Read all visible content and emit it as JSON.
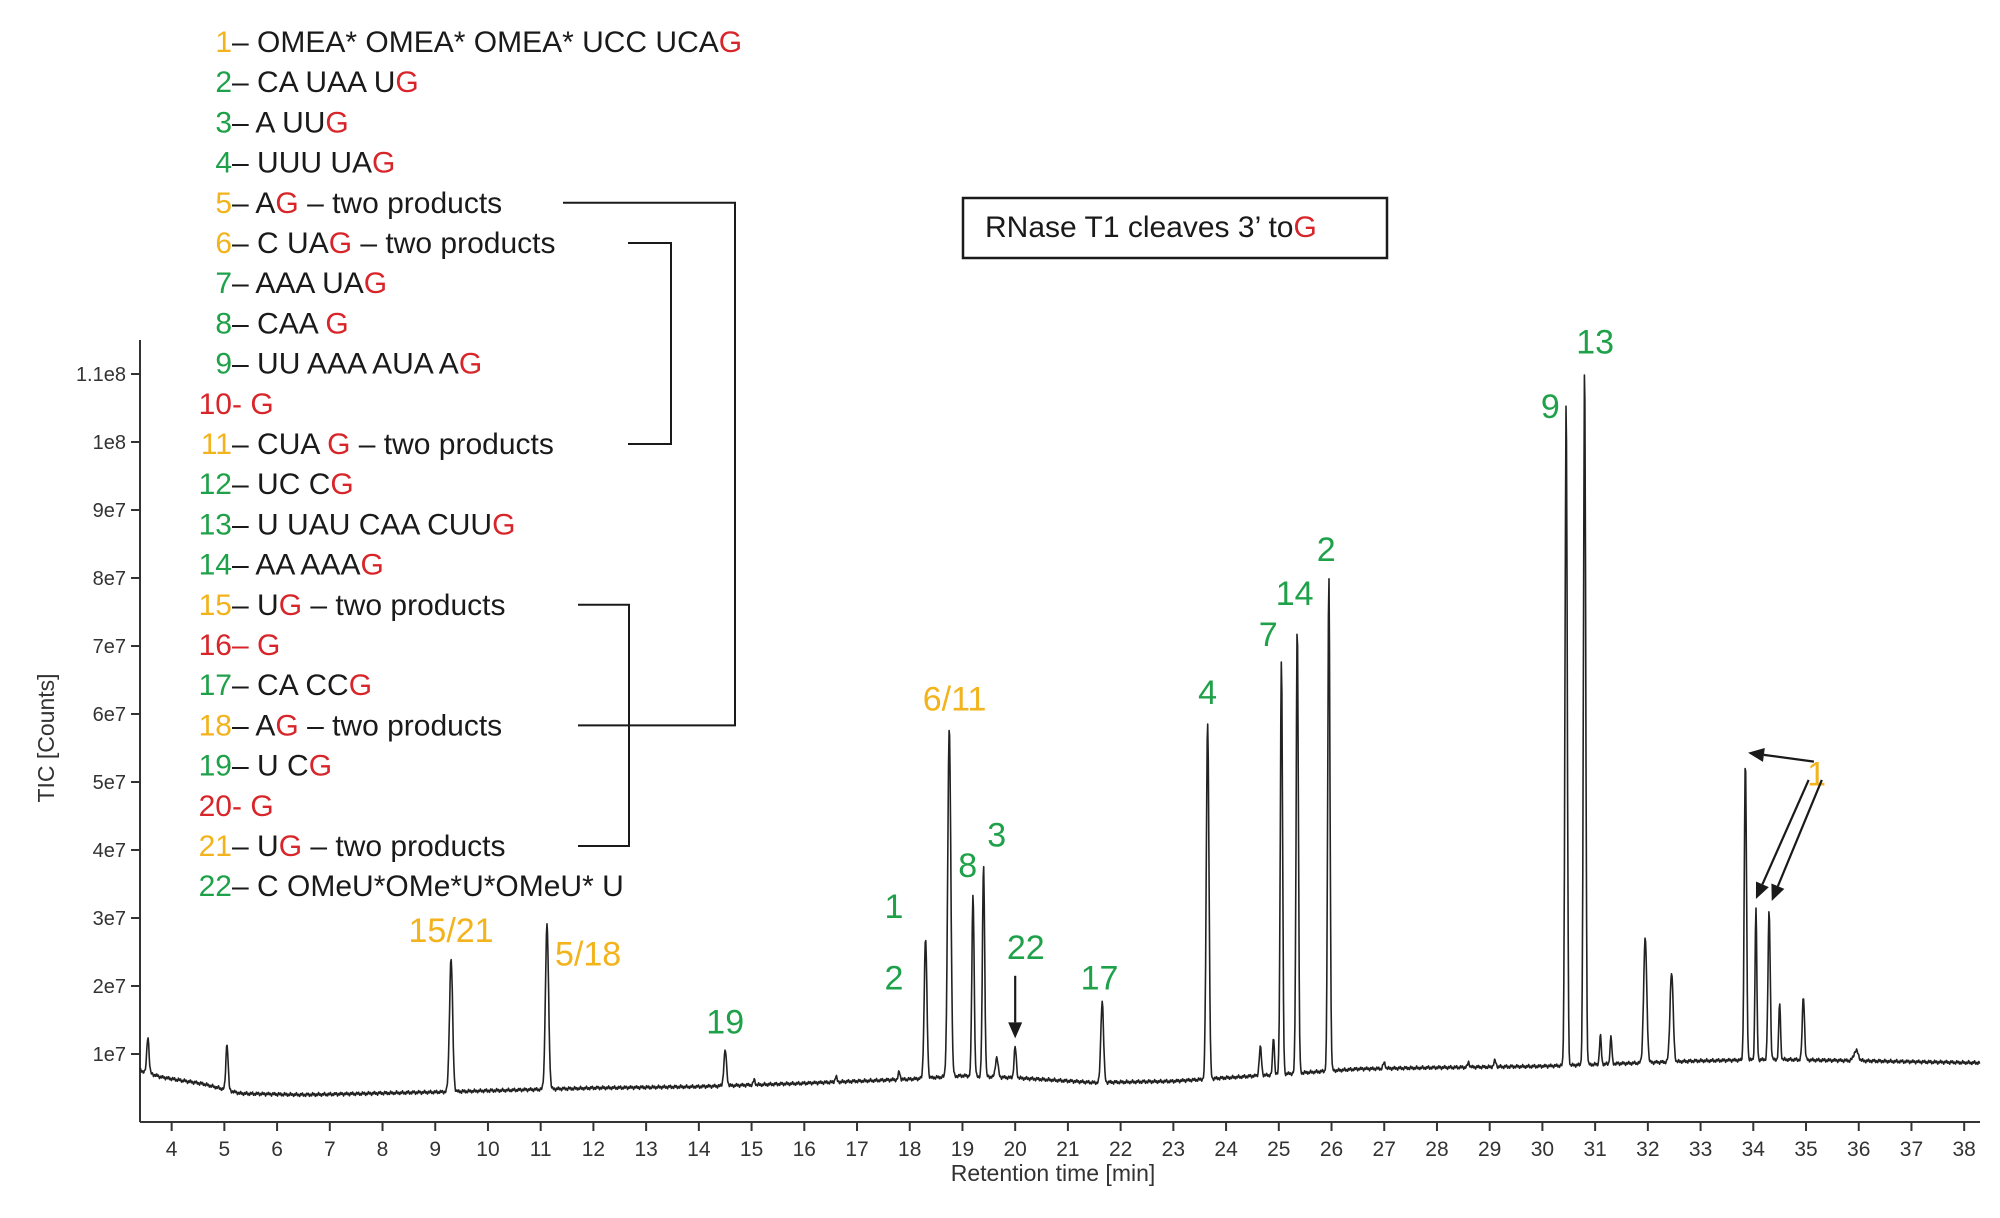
{
  "colors": {
    "orange": "#F2B31D",
    "green": "#1FA14A",
    "red": "#D8252A",
    "black": "#1a1a1a",
    "axis": "#333333"
  },
  "legend": [
    {
      "num": "1",
      "numColor": "orange",
      "sep": " – ",
      "parts": [
        [
          "OMEA* OMEA* OMEA* UCC UCA",
          "black"
        ],
        [
          "G",
          "red"
        ]
      ]
    },
    {
      "num": "2",
      "numColor": "green",
      "sep": " – ",
      "parts": [
        [
          "CA UAA U",
          "black"
        ],
        [
          "G",
          "red"
        ]
      ]
    },
    {
      "num": "3",
      "numColor": "green",
      "sep": " – ",
      "parts": [
        [
          "A UU",
          "black"
        ],
        [
          "G",
          "red"
        ]
      ]
    },
    {
      "num": "4",
      "numColor": "green",
      "sep": " – ",
      "parts": [
        [
          "UUU UA",
          "black"
        ],
        [
          "G",
          "red"
        ]
      ]
    },
    {
      "num": "5",
      "numColor": "orange",
      "sep": " – ",
      "parts": [
        [
          "A",
          "black"
        ],
        [
          "G",
          "red"
        ],
        [
          " – two products",
          "black"
        ]
      ]
    },
    {
      "num": "6",
      "numColor": "orange",
      "sep": " – ",
      "parts": [
        [
          "C UA",
          "black"
        ],
        [
          "G",
          "red"
        ],
        [
          " – two products",
          "black"
        ]
      ]
    },
    {
      "num": "7",
      "numColor": "green",
      "sep": " – ",
      "parts": [
        [
          "AAA UA",
          "black"
        ],
        [
          "G",
          "red"
        ]
      ]
    },
    {
      "num": "8",
      "numColor": "green",
      "sep": " – ",
      "parts": [
        [
          "CAA ",
          "black"
        ],
        [
          "G",
          "red"
        ]
      ]
    },
    {
      "num": "9",
      "numColor": "green",
      "sep": " – ",
      "parts": [
        [
          "UU AAA AUA A",
          "black"
        ],
        [
          "G",
          "red"
        ]
      ]
    },
    {
      "num": "10",
      "numColor": "red",
      "sep": " - ",
      "sepColor": "red",
      "parts": [
        [
          "G",
          "red"
        ]
      ]
    },
    {
      "num": "11",
      "numColor": "orange",
      "sep": " – ",
      "parts": [
        [
          "CUA ",
          "black"
        ],
        [
          "G",
          "red"
        ],
        [
          " – two products",
          "black"
        ]
      ]
    },
    {
      "num": "12",
      "numColor": "green",
      "sep": " – ",
      "parts": [
        [
          "UC C",
          "black"
        ],
        [
          "G",
          "red"
        ]
      ]
    },
    {
      "num": "13",
      "numColor": "green",
      "sep": " – ",
      "parts": [
        [
          "U UAU CAA CUU",
          "black"
        ],
        [
          "G",
          "red"
        ]
      ]
    },
    {
      "num": "14",
      "numColor": "green",
      "sep": " – ",
      "parts": [
        [
          "AA AAA",
          "black"
        ],
        [
          "G",
          "red"
        ]
      ]
    },
    {
      "num": "15",
      "numColor": "orange",
      "sep": " – ",
      "parts": [
        [
          "U",
          "black"
        ],
        [
          "G",
          "red"
        ],
        [
          " – two products",
          "black"
        ]
      ]
    },
    {
      "num": "16",
      "numColor": "red",
      "sep": " – ",
      "sepColor": "red",
      "parts": [
        [
          "G",
          "red"
        ]
      ]
    },
    {
      "num": "17",
      "numColor": "green",
      "sep": " – ",
      "parts": [
        [
          "CA CC",
          "black"
        ],
        [
          "G",
          "red"
        ]
      ]
    },
    {
      "num": "18",
      "numColor": "orange",
      "sep": " – ",
      "parts": [
        [
          "A",
          "black"
        ],
        [
          "G",
          "red"
        ],
        [
          " – two products",
          "black"
        ]
      ]
    },
    {
      "num": "19",
      "numColor": "green",
      "sep": " – ",
      "parts": [
        [
          "U C",
          "black"
        ],
        [
          "G",
          "red"
        ]
      ]
    },
    {
      "num": "20",
      "numColor": "red",
      "sep": " - ",
      "sepColor": "red",
      "parts": [
        [
          "G",
          "red"
        ]
      ]
    },
    {
      "num": "21",
      "numColor": "orange",
      "sep": " – ",
      "parts": [
        [
          "U",
          "black"
        ],
        [
          "G",
          "red"
        ],
        [
          " – two products",
          "black"
        ]
      ]
    },
    {
      "num": "22",
      "numColor": "green",
      "sep": " – ",
      "parts": [
        [
          "C OMeU*OMe*U*OMeU* U",
          "black"
        ]
      ]
    }
  ],
  "box_label": {
    "text": "RNase T1 cleaves 3’ to",
    "highlight": "G"
  },
  "chart_data": {
    "type": "line",
    "title": "",
    "xlabel": "Retention time [min]",
    "ylabel": "TIC [Counts]",
    "xlim": [
      3.4,
      38.3
    ],
    "ylim": [
      0,
      115000000
    ],
    "xticks": [
      4,
      5,
      6,
      7,
      8,
      9,
      10,
      11,
      12,
      13,
      14,
      15,
      16,
      17,
      18,
      19,
      20,
      21,
      22,
      23,
      24,
      25,
      26,
      27,
      28,
      29,
      30,
      31,
      32,
      33,
      34,
      35,
      36,
      37,
      38
    ],
    "yticks": [
      {
        "value": 10000000,
        "label": "1e7"
      },
      {
        "value": 20000000,
        "label": "2e7"
      },
      {
        "value": 30000000,
        "label": "3e7"
      },
      {
        "value": 40000000,
        "label": "4e7"
      },
      {
        "value": 50000000,
        "label": "5e7"
      },
      {
        "value": 60000000,
        "label": "6e7"
      },
      {
        "value": 70000000,
        "label": "7e7"
      },
      {
        "value": 80000000,
        "label": "8e7"
      },
      {
        "value": 90000000,
        "label": "9e7"
      },
      {
        "value": 100000000,
        "label": "1e8"
      },
      {
        "value": 110000000,
        "label": "1.1e8"
      }
    ],
    "baseline": [
      [
        3.4,
        7600000
      ],
      [
        3.8,
        6600000
      ],
      [
        4.6,
        5600000
      ],
      [
        5.3,
        4200000
      ],
      [
        6.5,
        4000000
      ],
      [
        9.0,
        4400000
      ],
      [
        11.0,
        4800000
      ],
      [
        12.0,
        5000000
      ],
      [
        14.0,
        5200000
      ],
      [
        16.0,
        5700000
      ],
      [
        18.0,
        6300000
      ],
      [
        19.0,
        6800000
      ],
      [
        20.0,
        6500000
      ],
      [
        21.5,
        5800000
      ],
      [
        23.0,
        6000000
      ],
      [
        25.0,
        7000000
      ],
      [
        26.5,
        7800000
      ],
      [
        28.0,
        8000000
      ],
      [
        30.0,
        8200000
      ],
      [
        31.5,
        8600000
      ],
      [
        33.0,
        9000000
      ],
      [
        34.5,
        9200000
      ],
      [
        36.0,
        9000000
      ],
      [
        38.3,
        8700000
      ]
    ],
    "peaks": [
      {
        "x": 3.55,
        "y": 12500000,
        "w": 0.05
      },
      {
        "x": 5.05,
        "y": 11500000,
        "w": 0.05
      },
      {
        "x": 9.3,
        "y": 24000000,
        "w": 0.07
      },
      {
        "x": 11.12,
        "y": 29000000,
        "w": 0.07
      },
      {
        "x": 14.5,
        "y": 10500000,
        "w": 0.06
      },
      {
        "x": 15.05,
        "y": 6200000,
        "w": 0.04
      },
      {
        "x": 16.6,
        "y": 6700000,
        "w": 0.04
      },
      {
        "x": 17.8,
        "y": 7400000,
        "w": 0.04
      },
      {
        "x": 18.3,
        "y": 27000000,
        "w": 0.06
      },
      {
        "x": 18.75,
        "y": 58000000,
        "w": 0.07
      },
      {
        "x": 19.2,
        "y": 33500000,
        "w": 0.05
      },
      {
        "x": 19.4,
        "y": 38000000,
        "w": 0.05
      },
      {
        "x": 19.65,
        "y": 9500000,
        "w": 0.06
      },
      {
        "x": 20.0,
        "y": 11000000,
        "w": 0.05
      },
      {
        "x": 21.65,
        "y": 17800000,
        "w": 0.06
      },
      {
        "x": 23.65,
        "y": 59000000,
        "w": 0.06
      },
      {
        "x": 24.65,
        "y": 11000000,
        "w": 0.05
      },
      {
        "x": 24.9,
        "y": 12500000,
        "w": 0.04
      },
      {
        "x": 25.05,
        "y": 68000000,
        "w": 0.05
      },
      {
        "x": 25.35,
        "y": 73000000,
        "w": 0.05
      },
      {
        "x": 25.95,
        "y": 80000000,
        "w": 0.05
      },
      {
        "x": 27.0,
        "y": 8700000,
        "w": 0.05
      },
      {
        "x": 28.6,
        "y": 8800000,
        "w": 0.04
      },
      {
        "x": 29.1,
        "y": 9000000,
        "w": 0.05
      },
      {
        "x": 30.45,
        "y": 106000000,
        "w": 0.05
      },
      {
        "x": 30.8,
        "y": 111000000,
        "w": 0.05
      },
      {
        "x": 31.1,
        "y": 12700000,
        "w": 0.04
      },
      {
        "x": 31.3,
        "y": 12500000,
        "w": 0.04
      },
      {
        "x": 31.95,
        "y": 27000000,
        "w": 0.07
      },
      {
        "x": 32.45,
        "y": 22000000,
        "w": 0.07
      },
      {
        "x": 33.85,
        "y": 53000000,
        "w": 0.05
      },
      {
        "x": 34.05,
        "y": 31500000,
        "w": 0.04
      },
      {
        "x": 34.3,
        "y": 31000000,
        "w": 0.05
      },
      {
        "x": 34.5,
        "y": 17500000,
        "w": 0.04
      },
      {
        "x": 34.95,
        "y": 18500000,
        "w": 0.05
      },
      {
        "x": 35.95,
        "y": 10500000,
        "w": 0.1
      }
    ],
    "annotations": [
      {
        "text": "15/21",
        "color": "orange",
        "x": 9.3,
        "y": 26500000
      },
      {
        "text": "5/18",
        "color": "orange",
        "x": 11.9,
        "y": 23000000
      },
      {
        "text": "19",
        "color": "green",
        "x": 14.5,
        "y": 13000000
      },
      {
        "text": "1",
        "color": "green",
        "x": 17.7,
        "y": 30000000
      },
      {
        "text": "2",
        "color": "green",
        "x": 17.7,
        "y": 19500000
      },
      {
        "text": "6/11",
        "color": "orange",
        "x": 18.85,
        "y": 60500000
      },
      {
        "text": "8",
        "color": "green",
        "x": 19.1,
        "y": 36000000
      },
      {
        "text": "3",
        "color": "green",
        "x": 19.65,
        "y": 40500000
      },
      {
        "text": "22",
        "color": "green",
        "x": 20.2,
        "y": 24000000
      },
      {
        "text": "17",
        "color": "green",
        "x": 21.6,
        "y": 19500000
      },
      {
        "text": "4",
        "color": "green",
        "x": 23.65,
        "y": 61500000
      },
      {
        "text": "7",
        "color": "green",
        "x": 24.8,
        "y": 70000000
      },
      {
        "text": "14",
        "color": "green",
        "x": 25.3,
        "y": 76000000
      },
      {
        "text": "2",
        "color": "green",
        "x": 25.9,
        "y": 82500000
      },
      {
        "text": "9",
        "color": "green",
        "x": 30.15,
        "y": 103500000
      },
      {
        "text": "13",
        "color": "green",
        "x": 31.0,
        "y": 113000000
      },
      {
        "text": "1",
        "color": "orange",
        "x": 35.2,
        "y": 49500000
      }
    ]
  }
}
